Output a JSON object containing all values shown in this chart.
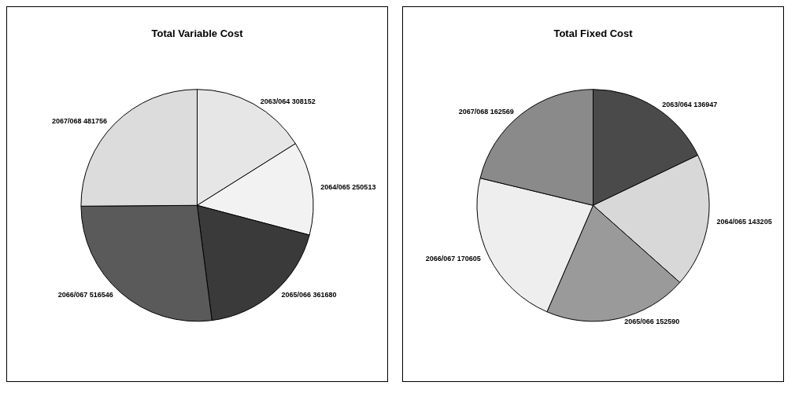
{
  "chart_data": [
    {
      "type": "pie",
      "title": "Total Variable Cost",
      "categories": [
        "2063/064",
        "2064/065",
        "2065/066",
        "2066/067",
        "2067/068"
      ],
      "values": [
        308152,
        250513,
        361680,
        516546,
        481756
      ],
      "colors": [
        "#e6e6e6",
        "#f2f2f2",
        "#3a3a3a",
        "#5a5a5a",
        "#dcdcdc"
      ],
      "data_labels": true,
      "legend": false
    },
    {
      "type": "pie",
      "title": "Total Fixed Cost",
      "categories": [
        "2063/064",
        "2064/065",
        "2065/066",
        "2066/067",
        "2067/068"
      ],
      "values": [
        136947,
        143205,
        152590,
        170605,
        162569
      ],
      "colors": [
        "#4a4a4a",
        "#d8d8d8",
        "#9a9a9a",
        "#eeeeee",
        "#8a8a8a"
      ],
      "data_labels": true,
      "legend": false
    }
  ]
}
